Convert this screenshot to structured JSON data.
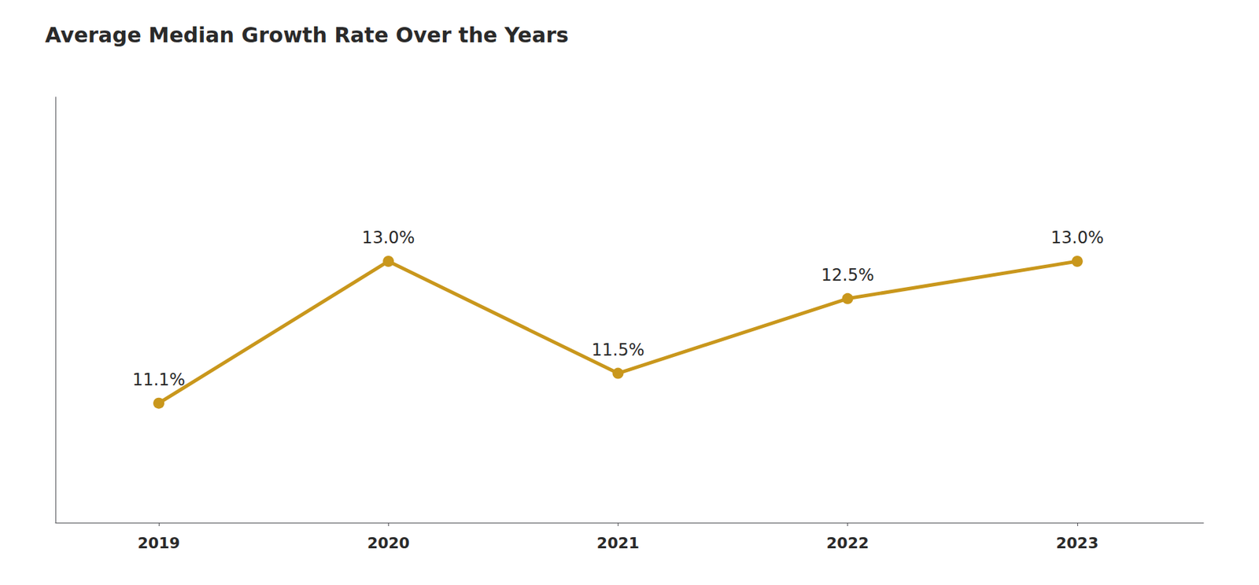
{
  "chart_data": {
    "type": "line",
    "title": "Average Median Growth Rate Over the Years",
    "x": [
      2019,
      2020,
      2021,
      2022,
      2023
    ],
    "values": [
      11.1,
      13.0,
      11.5,
      12.5,
      13.0
    ],
    "value_labels": [
      "11.1%",
      "13.0%",
      "11.5%",
      "12.5%",
      "13.0%"
    ],
    "color": "#C9971C",
    "marker": "circle",
    "xlim": [
      2018.55,
      2023.55
    ],
    "xticks": [
      2019,
      2020,
      2021,
      2022,
      2023
    ],
    "ylim": [
      9.5,
      15.2
    ],
    "grid": false,
    "data_labels": true,
    "tick_labels": "x"
  }
}
